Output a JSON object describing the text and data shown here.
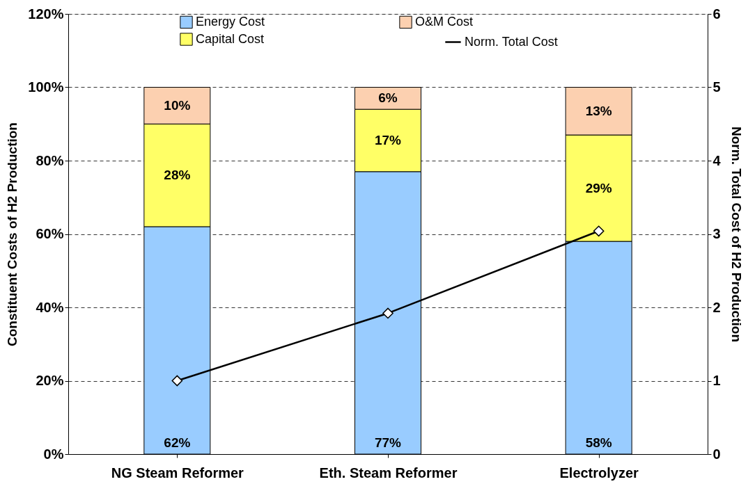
{
  "chart_data": {
    "type": "bar",
    "stacked": true,
    "categories": [
      "NG Steam Reformer",
      "Eth. Steam Reformer",
      "Electrolyzer"
    ],
    "ylabel": "Constituent Costs of H2 Production",
    "y2label": "Norm. Total Cost of H2 Production",
    "ylim": [
      0,
      120
    ],
    "yticks": [
      {
        "value": 0,
        "label": "0%"
      },
      {
        "value": 20,
        "label": "20%"
      },
      {
        "value": 40,
        "label": "40%"
      },
      {
        "value": 60,
        "label": "60%"
      },
      {
        "value": 80,
        "label": "80%"
      },
      {
        "value": 100,
        "label": "100%"
      },
      {
        "value": 120,
        "label": "120%"
      }
    ],
    "y2lim": [
      0,
      6
    ],
    "y2ticks": [
      0,
      1,
      2,
      3,
      4,
      5,
      6
    ],
    "grid": "y",
    "legend": "top",
    "marker": "diamond",
    "line_style": "solid",
    "series": [
      {
        "name": "Energy Cost",
        "color": "#99ccff",
        "values": [
          62,
          77,
          58
        ],
        "value_labels": [
          "62%",
          "77%",
          "58%"
        ]
      },
      {
        "name": "Capital Cost",
        "color": "#ffff66",
        "values": [
          28,
          17,
          29
        ],
        "value_labels": [
          "28%",
          "17%",
          "29%"
        ]
      },
      {
        "name": "O&M Cost",
        "color": "#fcd0b0",
        "values": [
          10,
          6,
          13
        ],
        "value_labels": [
          "10%",
          "6%",
          "13%"
        ]
      },
      {
        "name": "Norm. Total Cost",
        "type": "line",
        "axis": "y2",
        "color": "#000000",
        "values": [
          1,
          1.92,
          3.04
        ]
      }
    ]
  }
}
